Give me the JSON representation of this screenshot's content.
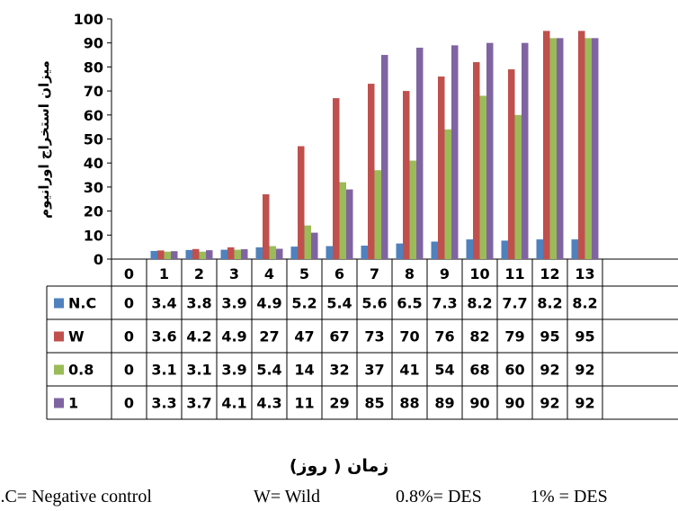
{
  "chart_data": {
    "type": "bar",
    "ylabel": "میزان استخراج اورانیوم",
    "xlabel": "زمان ( روز)",
    "ylim": [
      0,
      100
    ],
    "yticks": [
      0,
      10,
      20,
      30,
      40,
      50,
      60,
      70,
      80,
      90,
      100
    ],
    "grid": false,
    "legend": "data-table",
    "categories": [
      "0",
      "1",
      "2",
      "3",
      "4",
      "5",
      "6",
      "7",
      "8",
      "9",
      "10",
      "11",
      "12",
      "13"
    ],
    "series": [
      {
        "name": "N.C",
        "color": "#4f81bd",
        "values": [
          0,
          3.4,
          3.8,
          3.9,
          4.9,
          5.2,
          5.4,
          5.6,
          6.5,
          7.3,
          8.2,
          7.7,
          8.2,
          8.2
        ],
        "labels": [
          "0",
          "3.4",
          "3.8",
          "3.9",
          "4.9",
          "5.2",
          "5.4",
          "5.6",
          "6.5",
          "7.3",
          "8.2",
          "7.7",
          "8.2",
          "8.2"
        ]
      },
      {
        "name": "W",
        "color": "#c0504d",
        "values": [
          0,
          3.6,
          4.2,
          4.9,
          27,
          47,
          67,
          73,
          70,
          76,
          82,
          79,
          95,
          95
        ],
        "labels": [
          "0",
          "3.6",
          "4.2",
          "4.9",
          "27",
          "47",
          "67",
          "73",
          "70",
          "76",
          "82",
          "79",
          "95",
          "95"
        ]
      },
      {
        "name": "0.8",
        "color": "#9bbb59",
        "values": [
          0,
          3.1,
          3.1,
          3.9,
          5.4,
          14,
          32,
          37,
          41,
          54,
          68,
          60,
          92,
          92
        ],
        "labels": [
          "0",
          "3.1",
          "3.1",
          "3.9",
          "5.4",
          "14",
          "32",
          "37",
          "41",
          "54",
          "68",
          "60",
          "92",
          "92"
        ]
      },
      {
        "name": "1",
        "color": "#8064a2",
        "values": [
          0,
          3.3,
          3.7,
          4.1,
          4.3,
          11,
          29,
          85,
          88,
          89,
          90,
          90,
          92,
          92
        ],
        "labels": [
          "0",
          "3.3",
          "3.7",
          "4.1",
          "4.3",
          "11",
          "29",
          "85",
          "88",
          "89",
          "90",
          "90",
          "92",
          "92"
        ]
      }
    ]
  },
  "footnotes": [
    "N.C= Negative control",
    "W= Wild",
    "0.8%= DES",
    "1% = DES"
  ]
}
